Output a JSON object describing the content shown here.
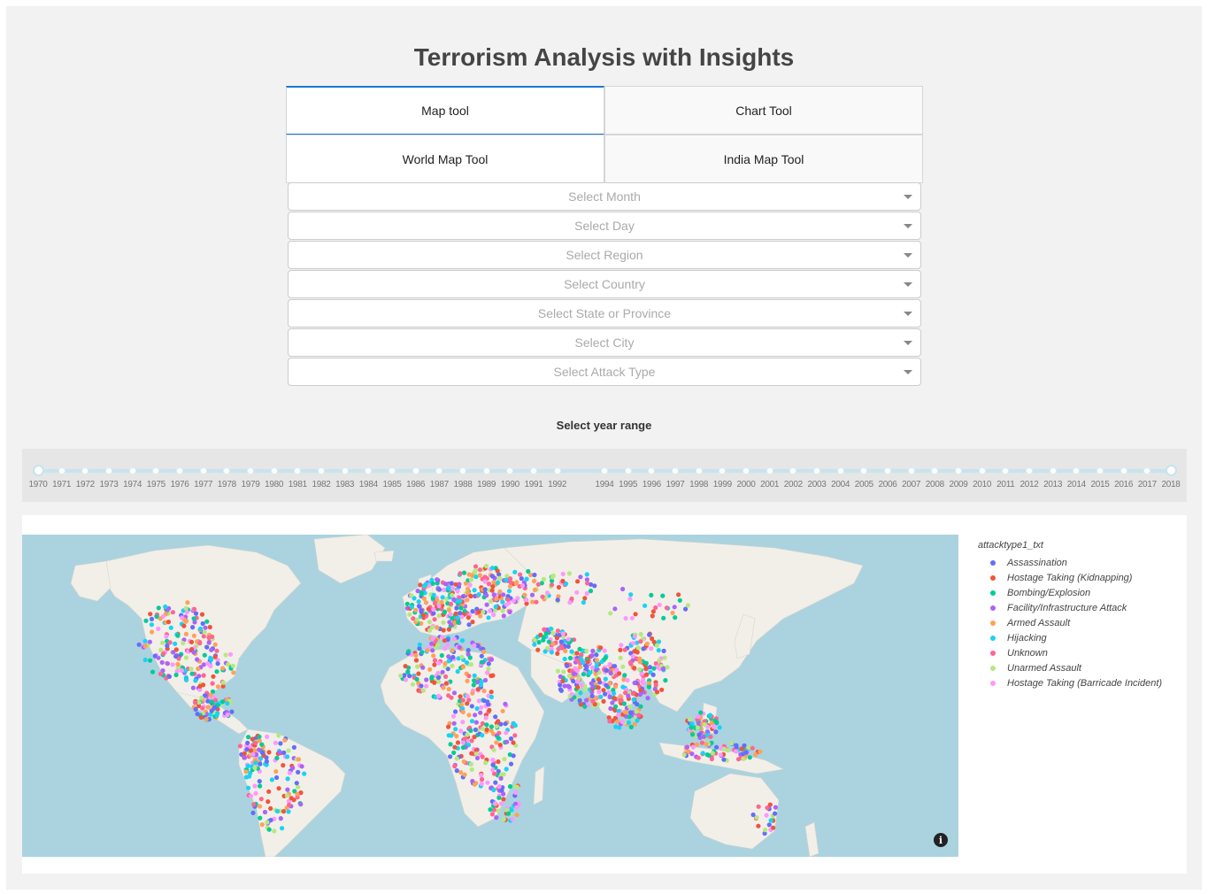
{
  "title": "Terrorism Analysis with Insights",
  "tabs": [
    {
      "label": "Map tool",
      "active": true
    },
    {
      "label": "Chart Tool",
      "active": false
    }
  ],
  "subtabs": [
    {
      "label": "World Map Tool",
      "active": true
    },
    {
      "label": "India Map Tool",
      "active": false
    }
  ],
  "filters": [
    {
      "placeholder": "Select Month"
    },
    {
      "placeholder": "Select Day"
    },
    {
      "placeholder": "Select Region"
    },
    {
      "placeholder": "Select Country"
    },
    {
      "placeholder": "Select State or Province"
    },
    {
      "placeholder": "Select City"
    },
    {
      "placeholder": "Select Attack Type"
    }
  ],
  "year_range": {
    "label": "Select year range",
    "min": 1970,
    "max": 2018,
    "selected": [
      1970,
      2018
    ],
    "marks": [
      "1970",
      "1971",
      "1972",
      "1973",
      "1974",
      "1975",
      "1976",
      "1977",
      "1978",
      "1979",
      "1980",
      "1981",
      "1982",
      "1983",
      "1984",
      "1985",
      "1986",
      "1987",
      "1988",
      "1989",
      "1990",
      "1991",
      "1992",
      "1994",
      "1995",
      "1996",
      "1997",
      "1998",
      "1999",
      "2000",
      "2001",
      "2002",
      "2003",
      "2004",
      "2005",
      "2006",
      "2007",
      "2008",
      "2009",
      "2010",
      "2011",
      "2012",
      "2013",
      "2014",
      "2015",
      "2016",
      "2017",
      "2018"
    ]
  },
  "map": {
    "legend_title": "attacktype1_txt",
    "legend": [
      {
        "label": "Assassination",
        "color": "#636efa"
      },
      {
        "label": "Hostage Taking (Kidnapping)",
        "color": "#ef553b"
      },
      {
        "label": "Bombing/Explosion",
        "color": "#00cc96"
      },
      {
        "label": "Facility/Infrastructure Attack",
        "color": "#ab63fa"
      },
      {
        "label": "Armed Assault",
        "color": "#ffa15a"
      },
      {
        "label": "Hijacking",
        "color": "#19d3f3"
      },
      {
        "label": "Unknown",
        "color": "#ff6692"
      },
      {
        "label": "Unarmed Assault",
        "color": "#b6e880"
      },
      {
        "label": "Hostage Taking (Barricade Incident)",
        "color": "#ff97ff"
      }
    ],
    "ocean_color": "#aad3df",
    "land_color": "#f2efe9",
    "info_icon": "i"
  }
}
